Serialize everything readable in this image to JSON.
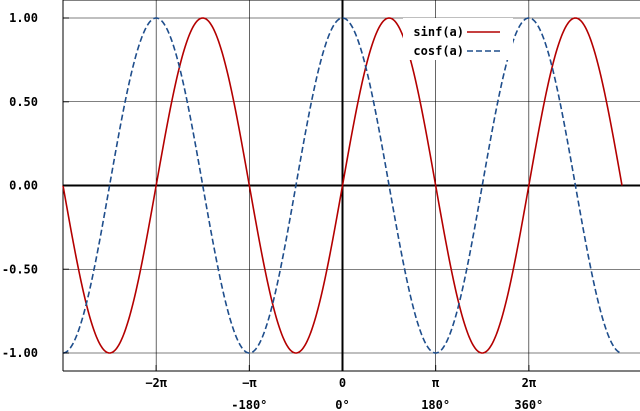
{
  "chart_data": {
    "type": "line",
    "xlim": [
      -9.42478,
      9.42478
    ],
    "ylim": [
      -1.0,
      1.0
    ],
    "grid": true,
    "legend_position": "top-right",
    "x_ticks": [
      {
        "value": -6.28319,
        "label": "−2π",
        "sublabel": ""
      },
      {
        "value": -3.14159,
        "label": "−π",
        "sublabel": "-180°"
      },
      {
        "value": 0,
        "label": "0",
        "sublabel": "0°"
      },
      {
        "value": 3.14159,
        "label": "π",
        "sublabel": "180°"
      },
      {
        "value": 6.28319,
        "label": "2π",
        "sublabel": "360°"
      }
    ],
    "y_ticks": [
      {
        "value": 1.0,
        "label": "1.00"
      },
      {
        "value": 0.5,
        "label": "0.50"
      },
      {
        "value": 0.0,
        "label": "0.00"
      },
      {
        "value": -0.5,
        "label": "-0.50"
      },
      {
        "value": -1.0,
        "label": "-1.00"
      }
    ],
    "series": [
      {
        "name": "sinf(a)",
        "function": "sin",
        "color": "#b40000",
        "style": "solid",
        "x": [
          -9.42478,
          -8.63938,
          -7.85398,
          -7.06858,
          -6.28319,
          -5.49779,
          -4.71239,
          -3.92699,
          -3.14159,
          -2.35619,
          -1.5708,
          -0.7854,
          0,
          0.7854,
          1.5708,
          2.35619,
          3.14159,
          3.92699,
          4.71239,
          5.49779,
          6.28319,
          7.06858,
          7.85398,
          8.63938,
          9.42478
        ],
        "y": [
          0,
          -0.707,
          -1,
          -0.707,
          0,
          0.707,
          1,
          0.707,
          0,
          -0.707,
          -1,
          -0.707,
          0,
          0.707,
          1,
          0.707,
          0,
          -0.707,
          -1,
          -0.707,
          0,
          0.707,
          1,
          0.707,
          0
        ]
      },
      {
        "name": "cosf(a)",
        "function": "cos",
        "color": "#1f4e8c",
        "style": "dashed",
        "x": [
          -9.42478,
          -8.63938,
          -7.85398,
          -7.06858,
          -6.28319,
          -5.49779,
          -4.71239,
          -3.92699,
          -3.14159,
          -2.35619,
          -1.5708,
          -0.7854,
          0,
          0.7854,
          1.5708,
          2.35619,
          3.14159,
          3.92699,
          4.71239,
          5.49779,
          6.28319,
          7.06858,
          7.85398,
          8.63938,
          9.42478
        ],
        "y": [
          -1,
          -0.707,
          0,
          0.707,
          1,
          0.707,
          0,
          -0.707,
          -1,
          -0.707,
          0,
          0.707,
          1,
          0.707,
          0,
          -0.707,
          -1,
          -0.707,
          0,
          0.707,
          1,
          0.707,
          0,
          -0.707,
          -1
        ]
      }
    ]
  }
}
